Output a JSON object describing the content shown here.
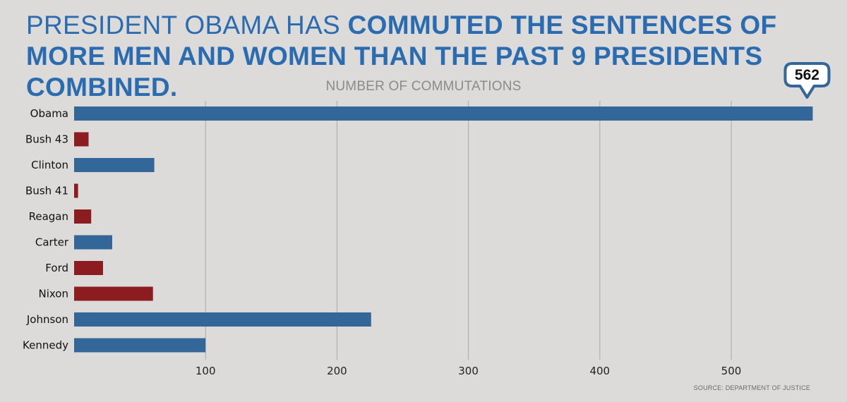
{
  "headline": {
    "part1": "PRESIDENT OBAMA HAS ",
    "part2": "COMMUTED THE SENTENCES OF MORE MEN AND WOMEN THAN THE PAST 9 PRESIDENTS COMBINED."
  },
  "source": "SOURCE: DEPARTMENT OF JUSTICE",
  "colors": {
    "democrat": "#336699",
    "republican": "#8c1c1f",
    "headline": "#2b6cb0",
    "background": "#dcdbd9",
    "gridline": "#a8a8a8",
    "callout_border": "#336699"
  },
  "chart_data": {
    "type": "bar",
    "orientation": "horizontal",
    "title": "NUMBER OF COMMUTATIONS",
    "categories": [
      "Obama",
      "Bush 43",
      "Clinton",
      "Bush 41",
      "Reagan",
      "Carter",
      "Ford",
      "Nixon",
      "Johnson",
      "Kennedy"
    ],
    "values": [
      562,
      11,
      61,
      3,
      13,
      29,
      22,
      60,
      226,
      100
    ],
    "party": [
      "democrat",
      "republican",
      "democrat",
      "republican",
      "republican",
      "democrat",
      "republican",
      "republican",
      "democrat",
      "democrat"
    ],
    "xlim": [
      0,
      600
    ],
    "xticks": [
      100,
      200,
      300,
      400,
      500
    ],
    "grid": true,
    "annotation": {
      "category": "Obama",
      "label": "562"
    }
  }
}
